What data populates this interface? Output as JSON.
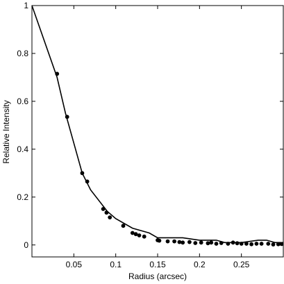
{
  "chart_data": {
    "type": "scatter",
    "xlabel": "Radius (arcsec)",
    "ylabel": "Relative Intensity",
    "xlim": [
      0.0,
      0.3
    ],
    "ylim": [
      -0.05,
      1.0
    ],
    "x_ticks": [
      0.05,
      0.1,
      0.15,
      0.2,
      0.25
    ],
    "x_tick_labels": [
      "0.05",
      "0.1",
      "0.15",
      "0.2",
      "0.25"
    ],
    "y_ticks": [
      0,
      0.2,
      0.4,
      0.6,
      0.8,
      1
    ],
    "y_tick_labels": [
      "0",
      "0.2",
      "0.4",
      "0.6",
      "0.8",
      "1"
    ],
    "grid": false,
    "series": [
      {
        "kind": "line",
        "x": [
          0.0,
          0.03,
          0.04,
          0.06,
          0.07,
          0.09,
          0.1,
          0.12,
          0.14,
          0.15,
          0.16,
          0.18,
          0.2,
          0.21,
          0.22,
          0.23,
          0.25,
          0.27,
          0.28,
          0.29,
          0.3
        ],
        "y": [
          1.0,
          0.7,
          0.55,
          0.3,
          0.23,
          0.14,
          0.11,
          0.07,
          0.05,
          0.03,
          0.03,
          0.03,
          0.02,
          0.02,
          0.02,
          0.01,
          0.01,
          0.02,
          0.02,
          0.01,
          0.01
        ]
      },
      {
        "kind": "points",
        "x": [
          0.03,
          0.042,
          0.06,
          0.066,
          0.085,
          0.089,
          0.093,
          0.109,
          0.12,
          0.124,
          0.128,
          0.134,
          0.15,
          0.152,
          0.162,
          0.17,
          0.176,
          0.18,
          0.188,
          0.195,
          0.202,
          0.21,
          0.214,
          0.22,
          0.226,
          0.234,
          0.24,
          0.245,
          0.25,
          0.256,
          0.262,
          0.268,
          0.274,
          0.282,
          0.288,
          0.294,
          0.298
        ],
        "y": [
          0.715,
          0.535,
          0.3,
          0.265,
          0.15,
          0.135,
          0.115,
          0.08,
          0.05,
          0.045,
          0.04,
          0.035,
          0.02,
          0.018,
          0.015,
          0.015,
          0.012,
          0.01,
          0.012,
          0.008,
          0.01,
          0.007,
          0.01,
          0.005,
          0.008,
          0.005,
          0.01,
          0.007,
          0.005,
          0.005,
          0.003,
          0.005,
          0.005,
          0.005,
          0.002,
          0.003,
          0.004
        ]
      }
    ]
  }
}
